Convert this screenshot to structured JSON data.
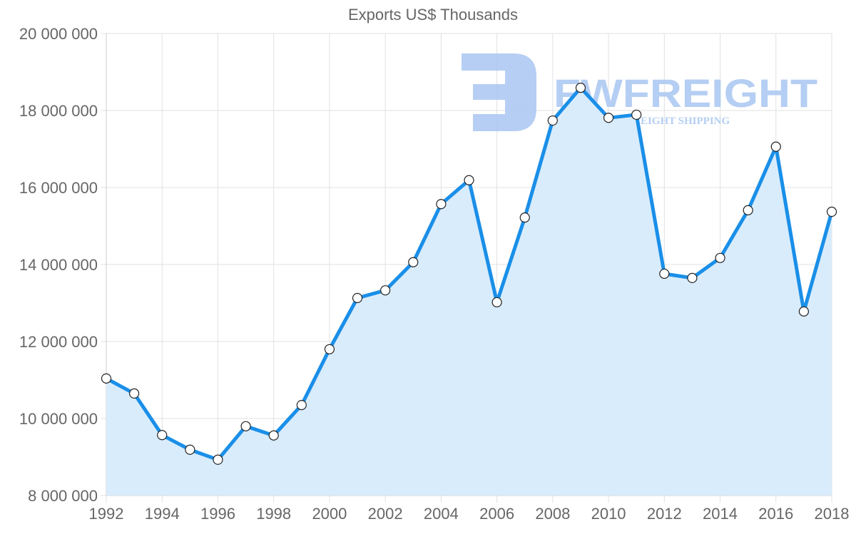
{
  "chart_data": {
    "type": "area",
    "title": "Exports US$ Thousands",
    "xlabel": "",
    "ylabel": "",
    "ylim": [
      8000000,
      20000000
    ],
    "yticks": [
      "8 000 000",
      "10 000 000",
      "12 000 000",
      "14 000 000",
      "16 000 000",
      "18 000 000",
      "20 000 000"
    ],
    "xtick_labels": [
      "1992",
      "1994",
      "1996",
      "1998",
      "2000",
      "2002",
      "2004",
      "2006",
      "2008",
      "2010",
      "2012",
      "2014",
      "2016",
      "2018"
    ],
    "grid": true,
    "legend": null,
    "x": [
      1992,
      1993,
      1994,
      1995,
      1996,
      1997,
      1998,
      1999,
      2000,
      2001,
      2002,
      2003,
      2004,
      2005,
      2006,
      2007,
      2008,
      2009,
      2010,
      2011,
      2012,
      2013,
      2014,
      2015,
      2016,
      2017,
      2018
    ],
    "series": [
      {
        "name": "Exports US$ Thousands",
        "color": "#1a8fe8",
        "fill": "#d9ecfc",
        "values": [
          11040000,
          10650000,
          9570000,
          9190000,
          8930000,
          9800000,
          9560000,
          10350000,
          11800000,
          13130000,
          13330000,
          14060000,
          15570000,
          16190000,
          13020000,
          15220000,
          17740000,
          18590000,
          17810000,
          17890000,
          13760000,
          13650000,
          14170000,
          15410000,
          17060000,
          12780000,
          15370000
        ]
      }
    ]
  },
  "watermark": {
    "brand": "FWFREIGHT",
    "tagline": "FREIGHT SHIPPING",
    "color": "#a9c6f2"
  }
}
